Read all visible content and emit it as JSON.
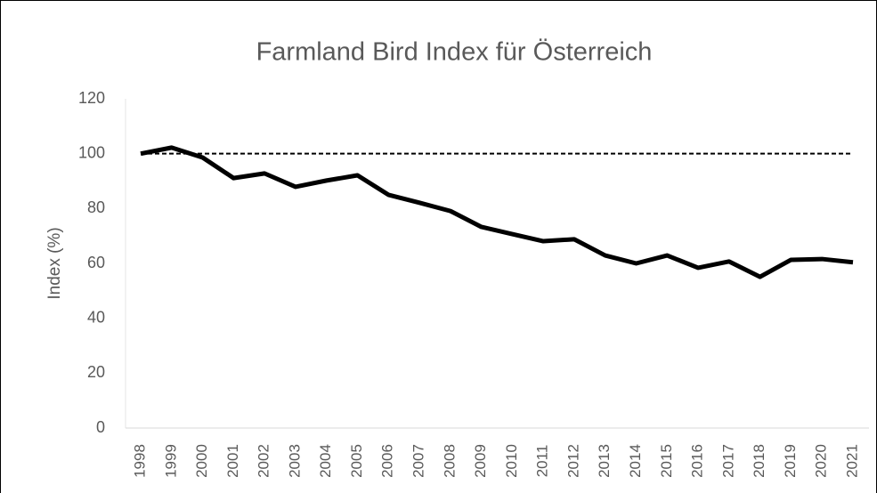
{
  "chart_data": {
    "type": "line",
    "title": "Farmland Bird Index für Österreich",
    "ylabel": "Index (%)",
    "categories": [
      "1998",
      "1999",
      "2000",
      "2001",
      "2002",
      "2003",
      "2004",
      "2005",
      "2006",
      "2007",
      "2008",
      "2009",
      "2010",
      "2011",
      "2012",
      "2013",
      "2014",
      "2015",
      "2016",
      "2017",
      "2018",
      "2019",
      "2020",
      "2021"
    ],
    "series": [
      {
        "color": "#000000",
        "values": [
          100,
          102.2,
          98.6,
          91.1,
          92.8,
          87.9,
          90.2,
          92.1,
          85,
          82.1,
          79.1,
          73.3,
          70.7,
          68.1,
          68.8,
          62.9,
          60,
          62.9,
          58.4,
          60.7,
          55.1,
          61.3,
          61.6,
          60.4
        ]
      }
    ],
    "reference_value": 100,
    "ylim": [
      0,
      120
    ],
    "yticks": [
      0,
      20,
      40,
      60,
      80,
      100,
      120
    ],
    "grid": false
  }
}
